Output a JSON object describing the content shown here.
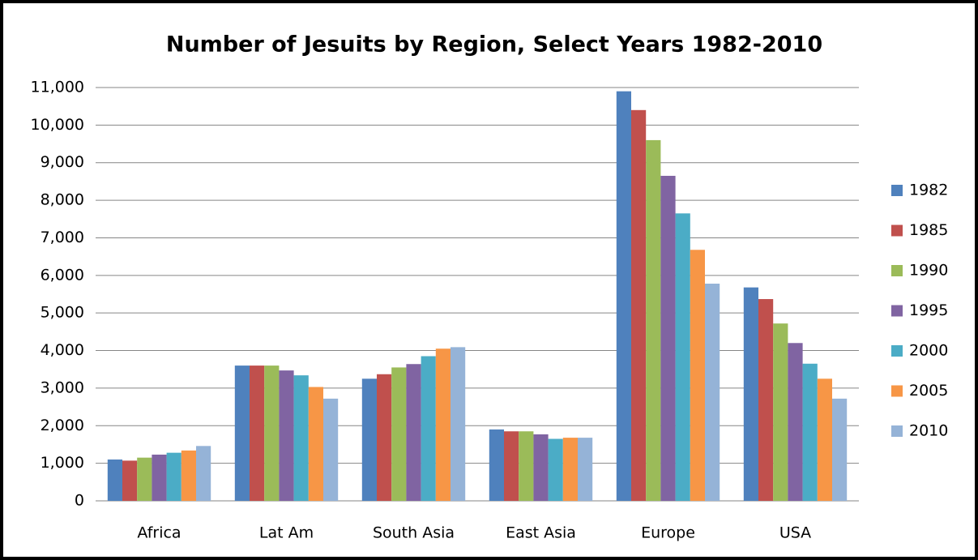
{
  "chart_data": {
    "type": "bar",
    "title": "Number of Jesuits by Region, Select Years 1982-2010",
    "categories": [
      "Africa",
      "Lat Am",
      "South Asia",
      "East Asia",
      "Europe",
      "USA"
    ],
    "series": [
      {
        "name": "1982",
        "color": "#4f81bd",
        "values": [
          1100,
          3600,
          3250,
          1900,
          10900,
          5680
        ]
      },
      {
        "name": "1985",
        "color": "#c0504d",
        "values": [
          1070,
          3600,
          3370,
          1850,
          10400,
          5370
        ]
      },
      {
        "name": "1990",
        "color": "#9bbb59",
        "values": [
          1150,
          3600,
          3550,
          1850,
          9600,
          4720
        ]
      },
      {
        "name": "1995",
        "color": "#8064a2",
        "values": [
          1230,
          3470,
          3640,
          1770,
          8650,
          4200
        ]
      },
      {
        "name": "2000",
        "color": "#4bacc6",
        "values": [
          1280,
          3340,
          3850,
          1650,
          7650,
          3650
        ]
      },
      {
        "name": "2005",
        "color": "#f79646",
        "values": [
          1340,
          3030,
          4050,
          1680,
          6680,
          3250
        ]
      },
      {
        "name": "2010",
        "color": "#95b3d7",
        "values": [
          1460,
          2720,
          4090,
          1680,
          5780,
          2720
        ]
      }
    ],
    "ylim": [
      0,
      11000
    ],
    "yticks": [
      0,
      {
        "value": 1000,
        "label": "1,000"
      },
      {
        "value": 2000,
        "label": "2,000"
      },
      {
        "value": 3000,
        "label": "3,000"
      },
      {
        "value": 4000,
        "label": "4,000"
      },
      {
        "value": 5000,
        "label": "5,000"
      },
      {
        "value": 6000,
        "label": "6,000"
      },
      {
        "value": 7000,
        "label": "7,000"
      },
      {
        "value": 8000,
        "label": "8,000"
      },
      {
        "value": 9000,
        "label": "9,000"
      },
      {
        "value": 10000,
        "label": "10,000"
      },
      {
        "value": 11000,
        "label": "11,000"
      }
    ],
    "grid": true,
    "legend": "right"
  }
}
